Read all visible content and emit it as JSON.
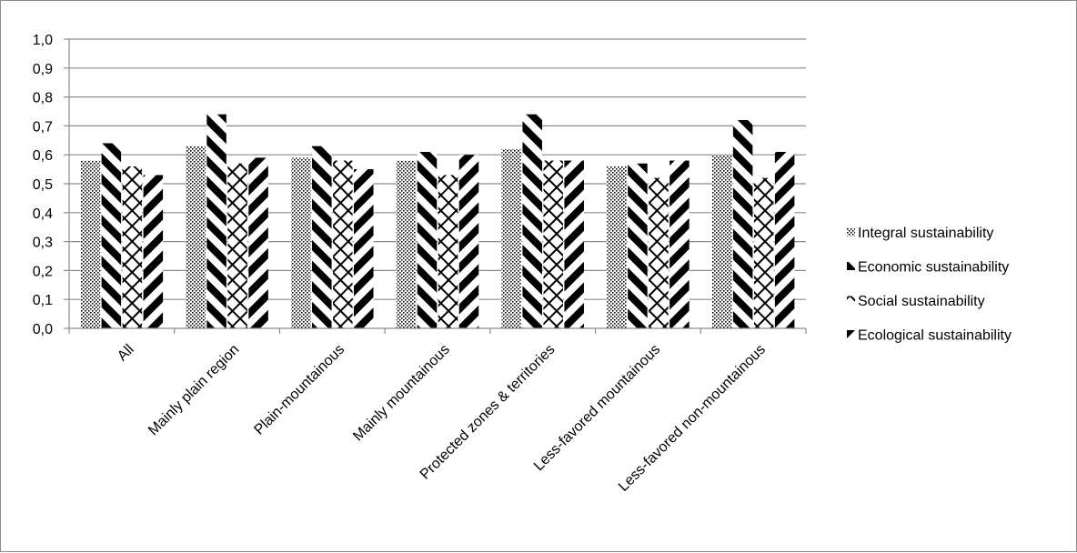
{
  "chart_data": {
    "type": "bar",
    "title": "",
    "xlabel": "",
    "ylabel": "",
    "ylim": [
      0,
      1.0
    ],
    "ytick_step": 0.1,
    "grid": true,
    "legend_placement": "right",
    "categories": [
      "All",
      "Mainly plain region",
      "Plain-mountainous",
      "Mainly mountainous",
      "Protected zones & territories",
      "Less-favored mountainous",
      "Less-favored non-mountainous"
    ],
    "series": [
      {
        "name": "Integral sustainability",
        "pattern": "dots",
        "values": [
          0.58,
          0.63,
          0.59,
          0.58,
          0.62,
          0.56,
          0.6
        ]
      },
      {
        "name": "Economic sustainability",
        "pattern": "diagonal-stripes-down",
        "values": [
          0.64,
          0.74,
          0.63,
          0.61,
          0.74,
          0.57,
          0.72
        ]
      },
      {
        "name": "Social sustainability",
        "pattern": "crosshatch",
        "values": [
          0.56,
          0.57,
          0.58,
          0.53,
          0.58,
          0.52,
          0.52
        ]
      },
      {
        "name": "Ecological sustainability",
        "pattern": "diagonal-stripes-up",
        "values": [
          0.53,
          0.59,
          0.55,
          0.6,
          0.58,
          0.58,
          0.61
        ]
      }
    ]
  }
}
